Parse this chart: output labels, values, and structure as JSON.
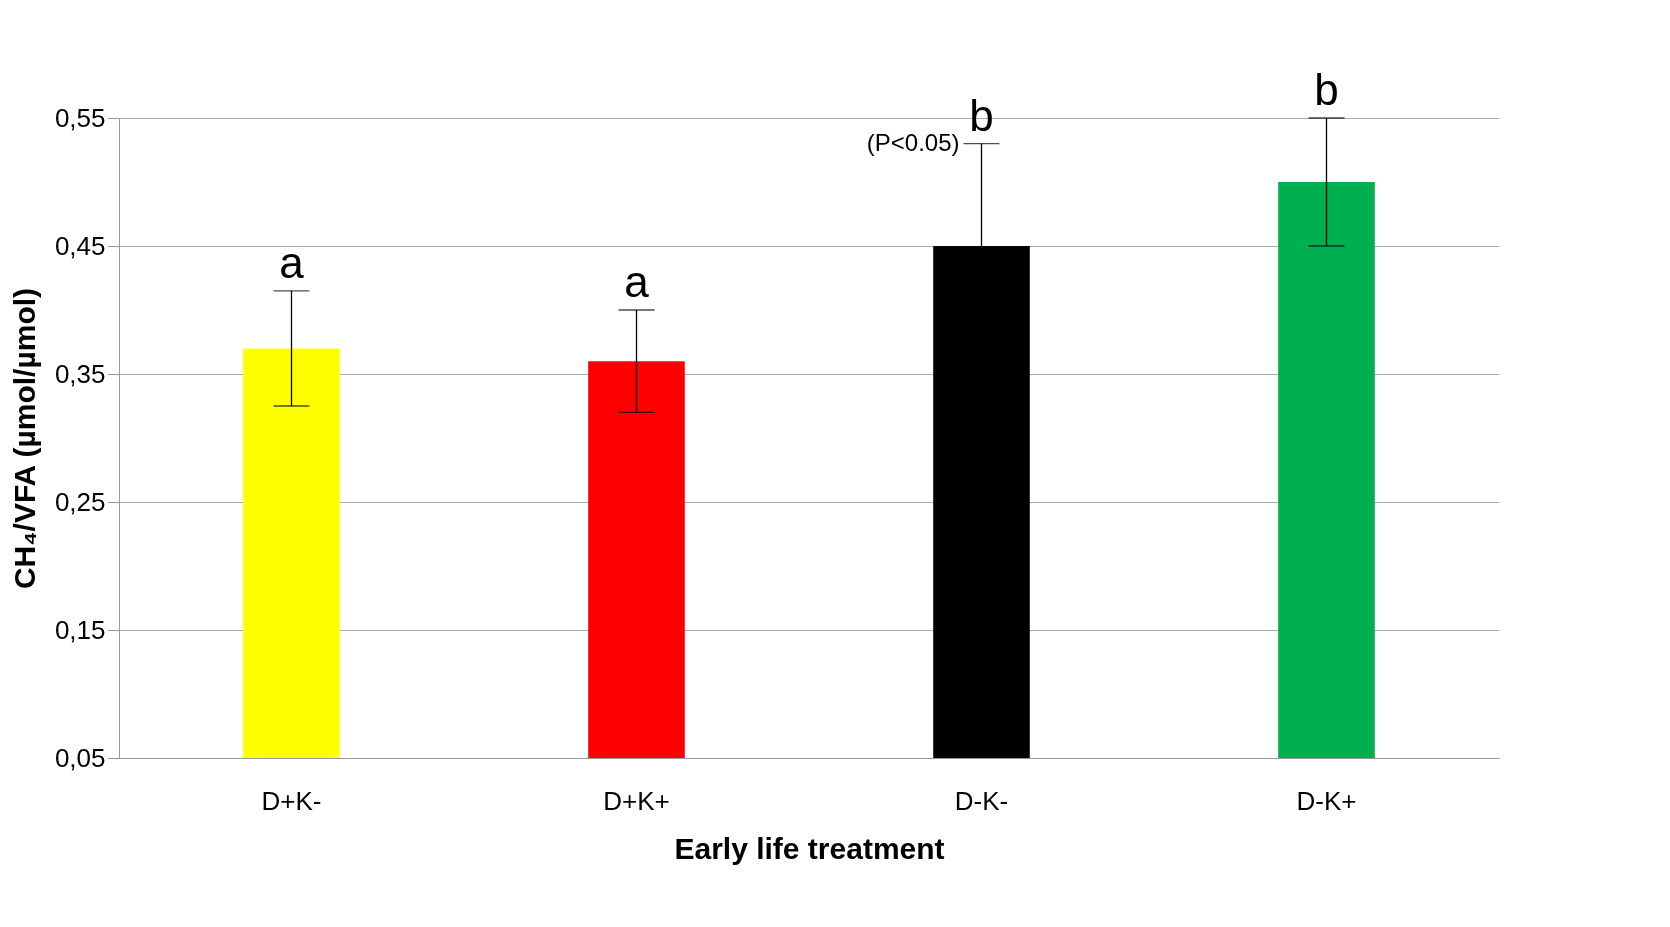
{
  "chart_data": {
    "type": "bar",
    "xlabel": "Early life treatment",
    "ylabel": "CH₄/VFA (µmol/µmol)",
    "categories": [
      "D+K-",
      "D+K+",
      "D-K-",
      "D-K+"
    ],
    "values": [
      0.37,
      0.36,
      0.45,
      0.5
    ],
    "colors": [
      "#ffff00",
      "#ff0000",
      "#000000",
      "#00b050"
    ],
    "errors": [
      0.045,
      0.04,
      0.08,
      0.05
    ],
    "ylim": [
      0.05,
      0.55
    ],
    "yticks": [
      {
        "value": 0.05,
        "label": "0,05"
      },
      {
        "value": 0.15,
        "label": "0,15"
      },
      {
        "value": 0.25,
        "label": "0,25"
      },
      {
        "value": 0.35,
        "label": "0,35"
      },
      {
        "value": 0.45,
        "label": "0,45"
      },
      {
        "value": 0.55,
        "label": "0,55"
      }
    ],
    "grid": "y",
    "annotations": [
      {
        "text": "a",
        "x": "D+K-",
        "y": 0.415
      },
      {
        "text": "a",
        "x": "D+K+",
        "y": 0.4
      },
      {
        "text": "b",
        "x": "D-K-",
        "y": 0.53
      },
      {
        "text": "(P<0.05)",
        "x": "D-K-",
        "y": 0.53
      },
      {
        "text": "b",
        "x": "D-K+",
        "y": 0.55
      }
    ]
  }
}
